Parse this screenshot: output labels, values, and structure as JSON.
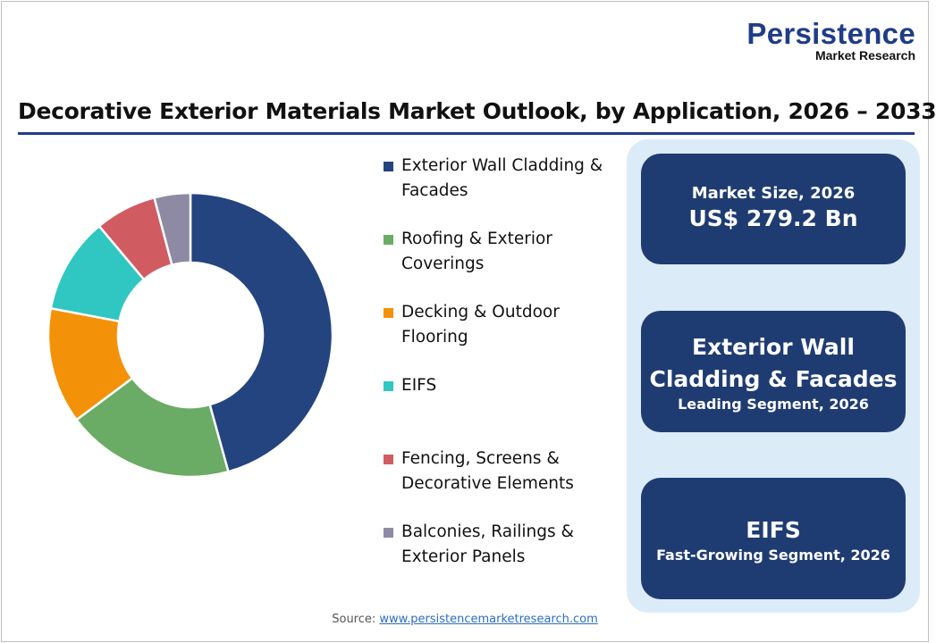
{
  "logo": {
    "line1": "Persistence",
    "line2": "Market Research"
  },
  "title": "Decorative Exterior Materials Market Outlook, by Application, 2026 – 2033",
  "chart_data": {
    "type": "pie",
    "donut": true,
    "title": "Decorative Exterior Materials Market Outlook, by Application, 2026 – 2033",
    "legend_position": "right",
    "categories": [
      "Exterior Wall Cladding & Facades",
      "Roofing & Exterior Coverings",
      "Decking & Outdoor Flooring",
      "EIFS",
      "Fencing, Screens & Decorative Elements",
      "Balconies, Railings & Exterior Panels"
    ],
    "values": [
      45.7,
      19.1,
      13.2,
      10.9,
      7.0,
      4.1
    ],
    "unit": "%",
    "colors": [
      "#24447f",
      "#6aab66",
      "#f39208",
      "#30c7c2",
      "#d05c62",
      "#8f8aa3"
    ]
  },
  "legend_lines": [
    [
      "Exterior Wall Cladding &",
      "Facades"
    ],
    [
      "Roofing & Exterior",
      "Coverings"
    ],
    [
      "Decking & Outdoor",
      "Flooring"
    ],
    [
      "EIFS"
    ],
    [
      "Fencing, Screens &",
      "Decorative Elements"
    ],
    [
      "Balconies, Railings &",
      "Exterior Panels"
    ]
  ],
  "cards": {
    "market_size_label": "Market Size, 2026",
    "market_size_value": "US$ 279.2 Bn",
    "leading_line1": "Exterior Wall",
    "leading_line2": "Cladding & Facades",
    "leading_label": "Leading Segment, 2026",
    "fast_value": "EIFS",
    "fast_label": "Fast-Growing Segment, 2026"
  },
  "source": {
    "label": "Source:",
    "link": "www.persistencemarketresearch.com"
  }
}
